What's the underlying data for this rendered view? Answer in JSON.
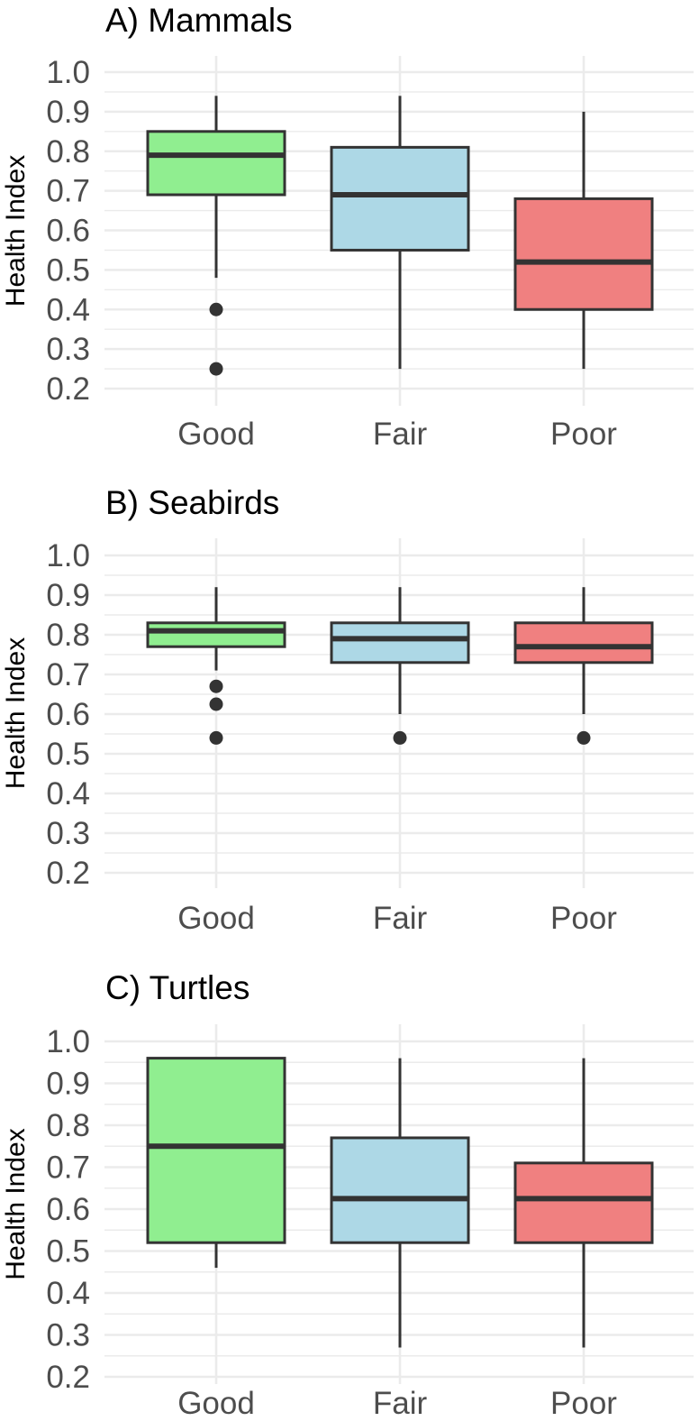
{
  "chart_data": [
    {
      "type": "boxplot",
      "title": "A) Mammals",
      "xlabel": "",
      "ylabel": "Health Index",
      "ylim": [
        0.2,
        1.0
      ],
      "yticks": [
        "0.2",
        "0.3",
        "0.4",
        "0.5",
        "0.6",
        "0.7",
        "0.8",
        "0.9",
        "1.0"
      ],
      "categories": [
        "Good",
        "Fair",
        "Poor"
      ],
      "boxes": [
        {
          "category": "Good",
          "whisker_low": 0.48,
          "q1": 0.69,
          "median": 0.79,
          "q3": 0.85,
          "whisker_high": 0.94,
          "outliers": [
            0.4,
            0.25
          ]
        },
        {
          "category": "Fair",
          "whisker_low": 0.25,
          "q1": 0.55,
          "median": 0.69,
          "q3": 0.81,
          "whisker_high": 0.94,
          "outliers": []
        },
        {
          "category": "Poor",
          "whisker_low": 0.25,
          "q1": 0.4,
          "median": 0.52,
          "q3": 0.68,
          "whisker_high": 0.9,
          "outliers": []
        }
      ]
    },
    {
      "type": "boxplot",
      "title": "B) Seabirds",
      "xlabel": "",
      "ylabel": "Health Index",
      "ylim": [
        0.2,
        1.0
      ],
      "yticks": [
        "0.2",
        "0.3",
        "0.4",
        "0.5",
        "0.6",
        "0.7",
        "0.8",
        "0.9",
        "1.0"
      ],
      "categories": [
        "Good",
        "Fair",
        "Poor"
      ],
      "boxes": [
        {
          "category": "Good",
          "whisker_low": 0.71,
          "q1": 0.77,
          "median": 0.81,
          "q3": 0.83,
          "whisker_high": 0.92,
          "outliers": [
            0.67,
            0.625,
            0.54
          ]
        },
        {
          "category": "Fair",
          "whisker_low": 0.6,
          "q1": 0.73,
          "median": 0.79,
          "q3": 0.83,
          "whisker_high": 0.92,
          "outliers": [
            0.54
          ]
        },
        {
          "category": "Poor",
          "whisker_low": 0.6,
          "q1": 0.73,
          "median": 0.77,
          "q3": 0.83,
          "whisker_high": 0.92,
          "outliers": [
            0.54
          ]
        }
      ]
    },
    {
      "type": "boxplot",
      "title": "C) Turtles",
      "xlabel": "",
      "ylabel": "Health Index",
      "ylim": [
        0.2,
        1.0
      ],
      "yticks": [
        "0.2",
        "0.3",
        "0.4",
        "0.5",
        "0.6",
        "0.7",
        "0.8",
        "0.9",
        "1.0"
      ],
      "categories": [
        "Good",
        "Fair",
        "Poor"
      ],
      "boxes": [
        {
          "category": "Good",
          "whisker_low": 0.46,
          "q1": 0.52,
          "median": 0.75,
          "q3": 0.96,
          "whisker_high": 0.96,
          "outliers": []
        },
        {
          "category": "Fair",
          "whisker_low": 0.27,
          "q1": 0.52,
          "median": 0.625,
          "q3": 0.77,
          "whisker_high": 0.96,
          "outliers": []
        },
        {
          "category": "Poor",
          "whisker_low": 0.27,
          "q1": 0.52,
          "median": 0.625,
          "q3": 0.71,
          "whisker_high": 0.96,
          "outliers": []
        }
      ]
    }
  ],
  "colors": {
    "Good": "#90ee90",
    "Fair": "#add8e6",
    "Poor": "#f08080",
    "outline": "#333333",
    "grid": "#ebebeb"
  }
}
